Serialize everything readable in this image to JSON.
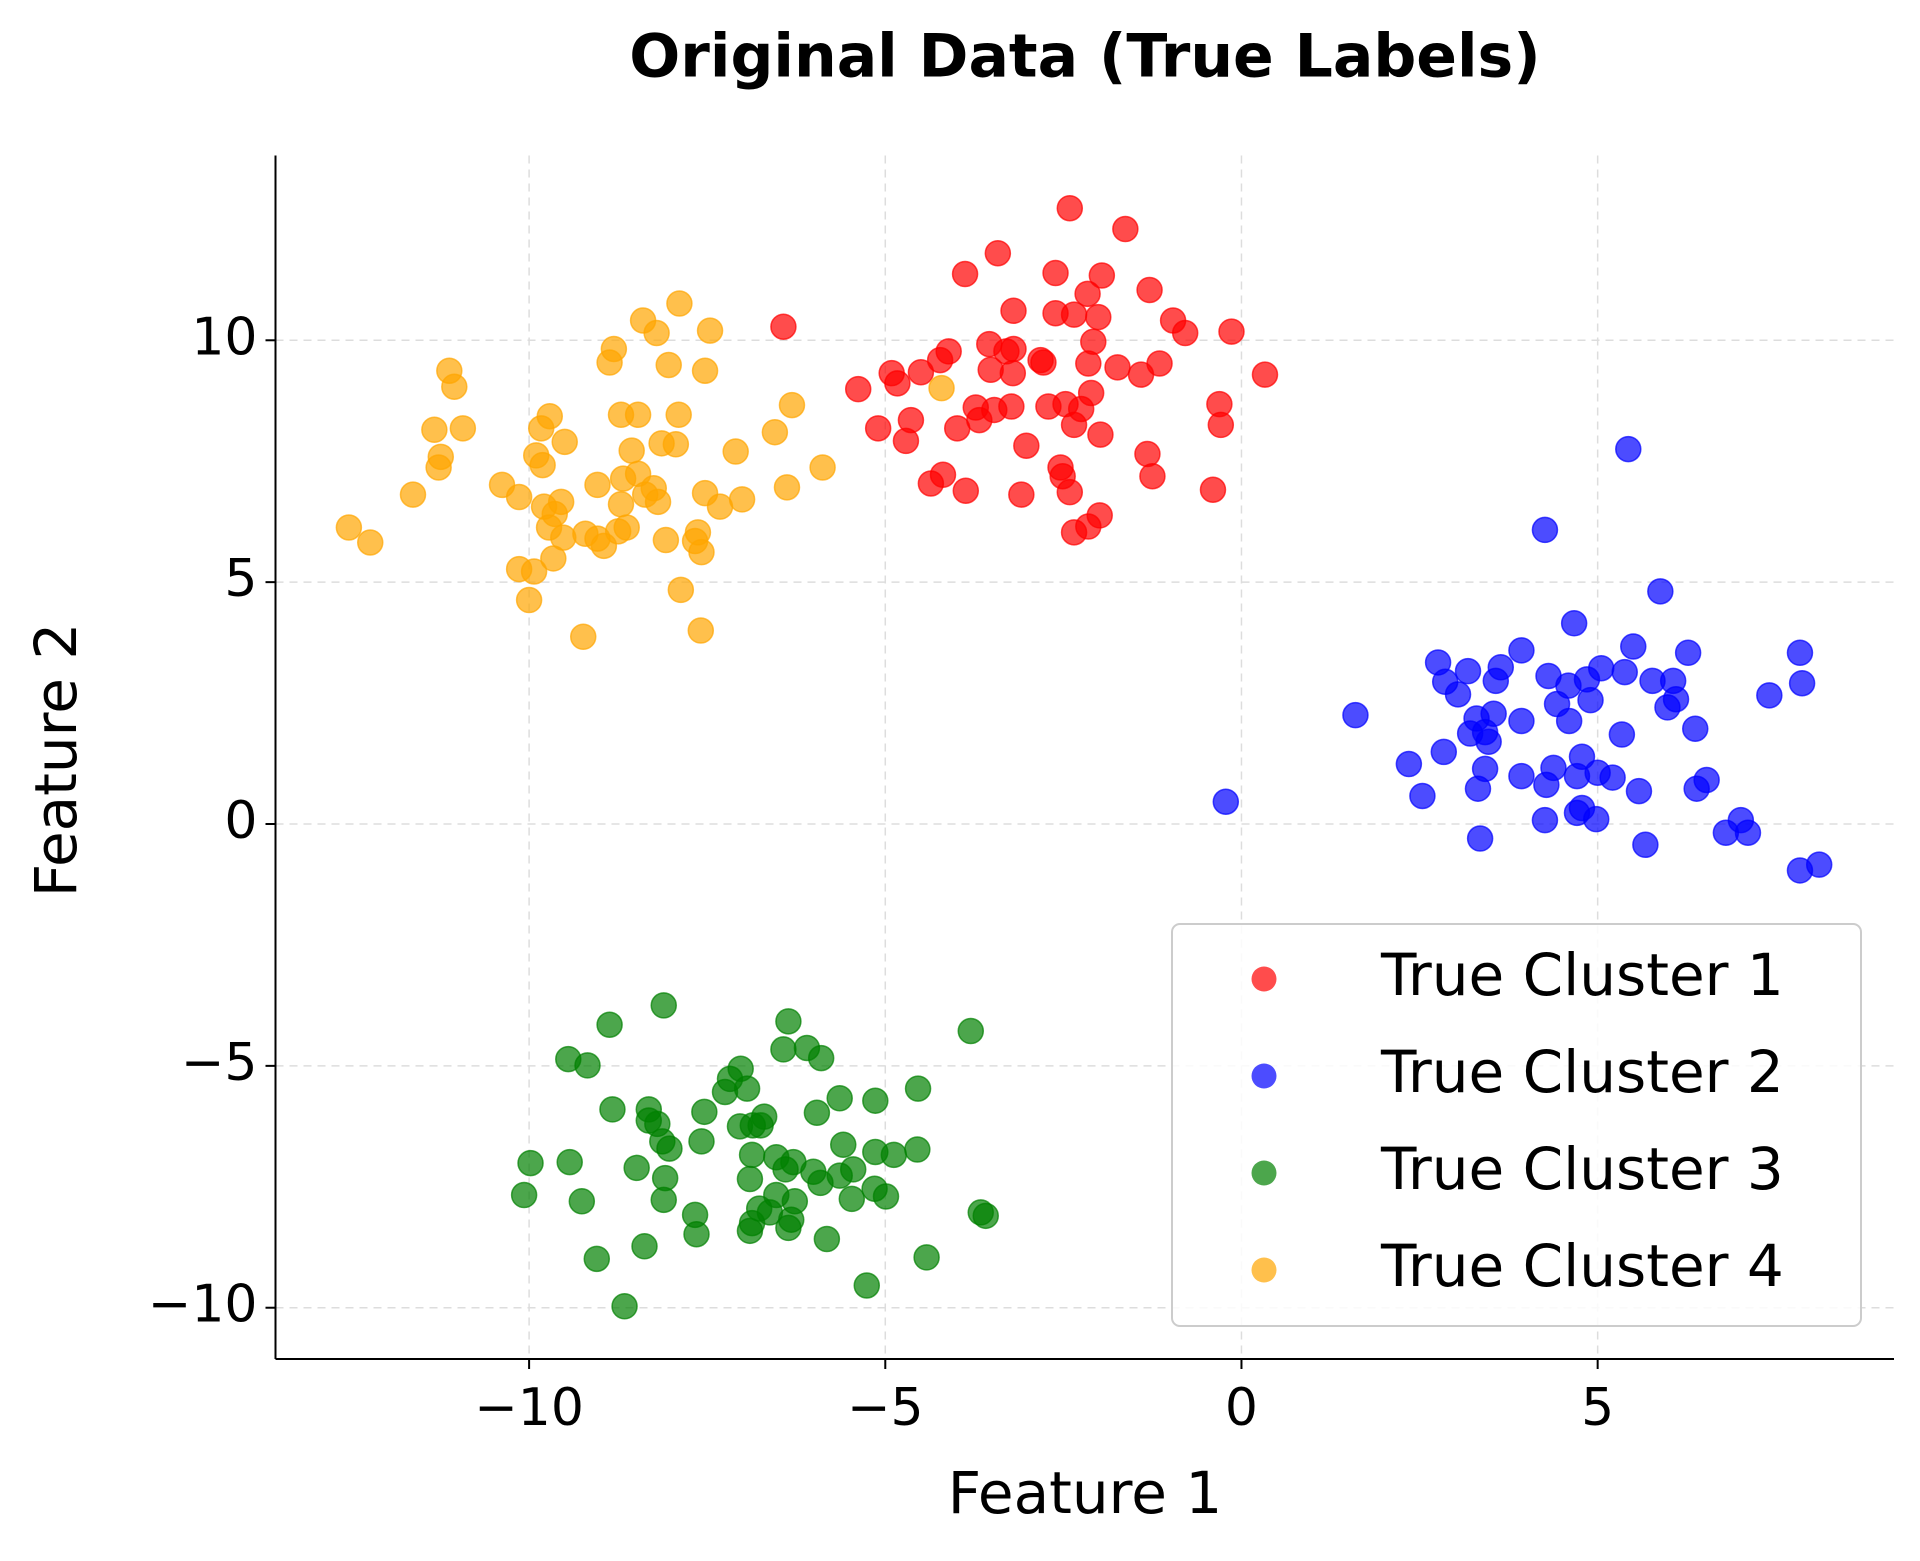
{
  "chart_data": {
    "type": "scatter",
    "title": "Original Data (True Labels)",
    "xlabel": "Feature 1",
    "ylabel": "Feature 2",
    "xlim": [
      -13.56,
      9.16
    ],
    "ylim": [
      -11.06,
      13.82
    ],
    "xticks": [
      {
        "value": -10,
        "label": "−10"
      },
      {
        "value": -5,
        "label": "−5"
      },
      0,
      5
    ],
    "yticks": [
      {
        "value": -10,
        "label": "−10"
      },
      {
        "value": -5,
        "label": "−5"
      },
      0,
      5,
      10
    ],
    "grid": true,
    "legend": "lower right",
    "alpha": 0.7,
    "series": [
      {
        "name": "True Cluster 1",
        "color": "#ff0000",
        "x": [
          -2.41,
          -1.63,
          -3.42,
          -3.88,
          -2.61,
          -1.96,
          -1.29,
          -2.16,
          -3.2,
          -2.61,
          -2.35,
          -2.01,
          -0.96,
          -0.79,
          -0.14,
          -6.43,
          -2.08,
          -3.54,
          -3.2,
          -4.11,
          -3.3,
          -4.23,
          -2.82,
          -2.15,
          -1.74,
          -1.15,
          -3.52,
          -3.21,
          -4.5,
          -4.91,
          -5.38,
          -4.83,
          0.33,
          -1.41,
          -2.11,
          -3.73,
          -3.47,
          -3.23,
          -2.71,
          -2.47,
          -2.25,
          -0.31,
          -4.64,
          -5.1,
          -3.99,
          -3.68,
          -2.35,
          -1.98,
          -0.29,
          -4.71,
          -3.02,
          -1.32,
          -2.54,
          -4.19,
          -1.25,
          -2.51,
          -4.36,
          -3.87,
          -3.09,
          -2.41,
          -0.4,
          -1.99,
          -2.15,
          -2.35,
          -2.78
        ],
        "values": [
          12.73,
          12.3,
          11.8,
          11.37,
          11.39,
          11.34,
          11.04,
          10.96,
          10.61,
          10.56,
          10.53,
          10.48,
          10.41,
          10.15,
          10.18,
          10.28,
          9.97,
          9.92,
          9.82,
          9.77,
          9.77,
          9.59,
          9.59,
          9.52,
          9.44,
          9.52,
          9.39,
          9.32,
          9.34,
          9.32,
          8.99,
          9.11,
          9.29,
          9.29,
          8.91,
          8.61,
          8.56,
          8.63,
          8.63,
          8.68,
          8.58,
          8.68,
          8.35,
          8.18,
          8.18,
          8.35,
          8.25,
          8.05,
          8.25,
          7.92,
          7.82,
          7.65,
          7.37,
          7.22,
          7.19,
          7.19,
          7.04,
          6.89,
          6.81,
          6.86,
          6.91,
          6.38,
          6.15,
          6.03,
          9.54
        ]
      },
      {
        "name": "True Cluster 2",
        "color": "#0000ff",
        "x": [
          5.43,
          4.26,
          5.88,
          4.67,
          3.93,
          5.5,
          6.27,
          7.84,
          2.76,
          3.18,
          3.64,
          5.05,
          4.31,
          4.59,
          4.85,
          5.38,
          3.57,
          2.86,
          5.77,
          6.06,
          7.87,
          7.41,
          3.04,
          4.9,
          6.1,
          5.98,
          4.43,
          1.6,
          3.93,
          3.54,
          3.3,
          4.6,
          3.21,
          6.37,
          3.47,
          3.42,
          5.34,
          2.84,
          4.78,
          2.35,
          4.38,
          3.42,
          3.93,
          4.71,
          5.0,
          5.21,
          6.53,
          4.28,
          6.39,
          3.32,
          5.58,
          2.54,
          -0.22,
          4.78,
          4.71,
          4.26,
          4.98,
          7.01,
          6.8,
          7.11,
          3.35,
          5.67,
          8.11,
          7.84
        ],
        "values": [
          7.75,
          6.08,
          4.81,
          4.15,
          3.59,
          3.67,
          3.54,
          3.54,
          3.34,
          3.16,
          3.24,
          3.22,
          3.06,
          2.86,
          2.99,
          3.14,
          2.96,
          2.94,
          2.96,
          2.96,
          2.91,
          2.66,
          2.68,
          2.56,
          2.58,
          2.41,
          2.48,
          2.25,
          2.13,
          2.28,
          2.18,
          2.13,
          1.87,
          1.97,
          1.7,
          1.9,
          1.85,
          1.49,
          1.39,
          1.24,
          1.16,
          1.14,
          0.99,
          0.99,
          1.06,
          0.96,
          0.91,
          0.81,
          0.73,
          0.73,
          0.68,
          0.58,
          0.46,
          0.33,
          0.23,
          0.08,
          0.1,
          0.08,
          -0.18,
          -0.18,
          -0.3,
          -0.43,
          -0.84,
          -0.96
        ]
      },
      {
        "name": "True Cluster 3",
        "color": "#008000",
        "x": [
          -8.11,
          -3.8,
          -6.36,
          -8.87,
          -9.45,
          -9.18,
          -6.43,
          -6.1,
          -5.9,
          -7.03,
          -7.18,
          -6.94,
          -7.25,
          -4.54,
          -5.64,
          -5.14,
          -8.83,
          -8.32,
          -7.54,
          -5.96,
          -8.32,
          -8.2,
          -7.04,
          -6.7,
          -6.75,
          -6.86,
          -8.13,
          -7.58,
          -8.03,
          -5.59,
          -4.55,
          -5.14,
          -4.88,
          -6.87,
          -6.53,
          -6.29,
          -6.4,
          -9.98,
          -9.43,
          -8.49,
          -6.01,
          -5.45,
          -5.64,
          -8.09,
          -6.9,
          -5.91,
          -5.15,
          -10.07,
          -9.26,
          -6.53,
          -4.99,
          -5.47,
          -8.11,
          -6.27,
          -6.77,
          -6.62,
          -7.67,
          -3.66,
          -3.59,
          -6.32,
          -6.87,
          -6.36,
          -6.9,
          -7.65,
          -5.82,
          -8.38,
          -9.05,
          -4.42,
          -5.26,
          -8.66
        ],
        "values": [
          -3.75,
          -4.28,
          -4.08,
          -4.15,
          -4.86,
          -4.99,
          -4.66,
          -4.63,
          -4.84,
          -5.06,
          -5.27,
          -5.47,
          -5.54,
          -5.47,
          -5.67,
          -5.72,
          -5.9,
          -5.9,
          -5.95,
          -5.97,
          -6.13,
          -6.2,
          -6.25,
          -6.05,
          -6.23,
          -6.23,
          -6.56,
          -6.56,
          -6.71,
          -6.63,
          -6.73,
          -6.78,
          -6.84,
          -6.84,
          -6.89,
          -6.99,
          -7.14,
          -7.01,
          -6.99,
          -7.11,
          -7.19,
          -7.14,
          -7.27,
          -7.32,
          -7.34,
          -7.42,
          -7.54,
          -7.67,
          -7.8,
          -7.67,
          -7.7,
          -7.75,
          -7.77,
          -7.8,
          -7.95,
          -8.03,
          -8.08,
          -8.03,
          -8.1,
          -8.18,
          -8.25,
          -8.35,
          -8.41,
          -8.48,
          -8.58,
          -8.73,
          -8.99,
          -8.96,
          -9.54,
          -9.97
        ]
      },
      {
        "name": "True Cluster 4",
        "color": "#ffa500",
        "x": [
          -7.89,
          -8.4,
          -8.21,
          -7.46,
          -8.81,
          -8.87,
          -8.04,
          -11.12,
          -7.53,
          -11.05,
          -4.21,
          -6.31,
          -8.71,
          -8.47,
          -7.9,
          -9.71,
          -9.83,
          -11.33,
          -10.93,
          -6.55,
          -9.5,
          -8.14,
          -7.94,
          -8.56,
          -7.1,
          -9.9,
          -11.24,
          -9.81,
          -11.27,
          -5.88,
          -8.47,
          -8.68,
          -9.04,
          -8.25,
          -6.38,
          -10.38,
          -8.37,
          -11.63,
          -10.14,
          -7.53,
          -7.01,
          -8.19,
          -8.71,
          -7.32,
          -9.55,
          -9.79,
          -9.64,
          -8.63,
          -9.72,
          -8.75,
          -12.53,
          -9.21,
          -7.63,
          -8.08,
          -9.52,
          -9.04,
          -8.95,
          -12.23,
          -7.67,
          -7.58,
          -9.66,
          -10.14,
          -9.93,
          -7.87,
          -10.0,
          -7.59,
          -9.24
        ],
        "values": [
          10.76,
          10.41,
          10.15,
          10.2,
          9.82,
          9.54,
          9.49,
          9.37,
          9.37,
          9.04,
          9.01,
          8.66,
          8.46,
          8.46,
          8.46,
          8.43,
          8.18,
          8.15,
          8.18,
          8.1,
          7.9,
          7.87,
          7.85,
          7.72,
          7.7,
          7.62,
          7.59,
          7.42,
          7.37,
          7.37,
          7.24,
          7.14,
          7.01,
          6.94,
          6.96,
          7.01,
          6.81,
          6.81,
          6.76,
          6.84,
          6.71,
          6.66,
          6.61,
          6.56,
          6.66,
          6.56,
          6.41,
          6.13,
          6.13,
          6.05,
          6.13,
          6.0,
          6.03,
          5.87,
          5.92,
          5.9,
          5.75,
          5.82,
          5.85,
          5.62,
          5.49,
          5.27,
          5.22,
          4.84,
          4.63,
          4.0,
          3.87
        ]
      }
    ]
  }
}
